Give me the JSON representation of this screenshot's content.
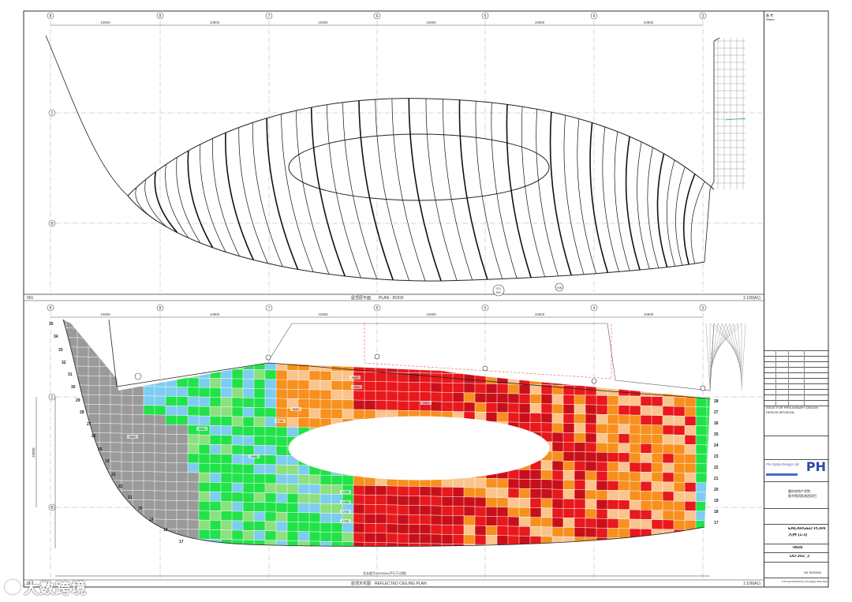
{
  "grid": {
    "columns": [
      "8",
      "8",
      "7",
      "6",
      "5",
      "4",
      "3"
    ],
    "rows_top": [
      "2",
      "B"
    ],
    "rows_bottom": [
      "2",
      "B"
    ],
    "spacing_labels": [
      "10800",
      "10800",
      "10800",
      "10800",
      "10800",
      "10800"
    ]
  },
  "top_plan": {
    "number": "001",
    "title_cn": "屋顶层平面",
    "title_en": "PLAN - ROOF",
    "scale": "1:100(A1)",
    "callouts": [
      "C01",
      "D02",
      "04B"
    ]
  },
  "bottom_plan": {
    "number": "002",
    "title_cn": "屋顶天花图",
    "title_en": "REFLECTED CEILING PLAN",
    "scale": "1:100(A1)",
    "side_dim": "10800",
    "bottom_note": "总长度为119950m(平行于边缘)",
    "dims": [
      "3000",
      "3000",
      "3000",
      "3000",
      "3000",
      "3000",
      "1700",
      "1700",
      "1700",
      "1700",
      "3000",
      "1700"
    ],
    "left_numbers": [
      "35",
      "34",
      "33",
      "32",
      "31",
      "30",
      "29",
      "28",
      "27",
      "26",
      "25",
      "24",
      "23",
      "22",
      "21",
      "20",
      "19",
      "18",
      "17"
    ],
    "right_numbers": [
      "28",
      "27",
      "26",
      "25",
      "24",
      "23",
      "22",
      "21",
      "20",
      "19",
      "18",
      "17"
    ]
  },
  "legend_colors": {
    "gray": "#9a9a9a",
    "green": "#22e24a",
    "light_green": "#8de07e",
    "blue": "#7dcdf0",
    "orange": "#f7901e",
    "light_orange": "#fbc48c",
    "red": "#e8181c",
    "dark_red": "#c8101a"
  },
  "title_block": {
    "revision_label": "备 考",
    "revision_label_en": "Notes",
    "issue_1": "ISSUE FOR PRELIMINARY DESIGN",
    "issue_2": "DESIGN REVISION",
    "company": "PH Alpha Design Ltd",
    "logo": "PH",
    "client_label": "项目",
    "project_cn_1": "重庆房地产学院",
    "project_cn_2": "图书馆消防改造项目",
    "drawing_title_en": "ENLARGED PLAN",
    "drawing_title_cn": "大样 (1-3)",
    "project_no": "0828",
    "drawing_no": "DD-302_3",
    "scale": "AS SHOWN",
    "filename": "F:\\Project\\2019\\CHN_Chongqing Real Estate College"
  },
  "watermark": "大数跨境"
}
